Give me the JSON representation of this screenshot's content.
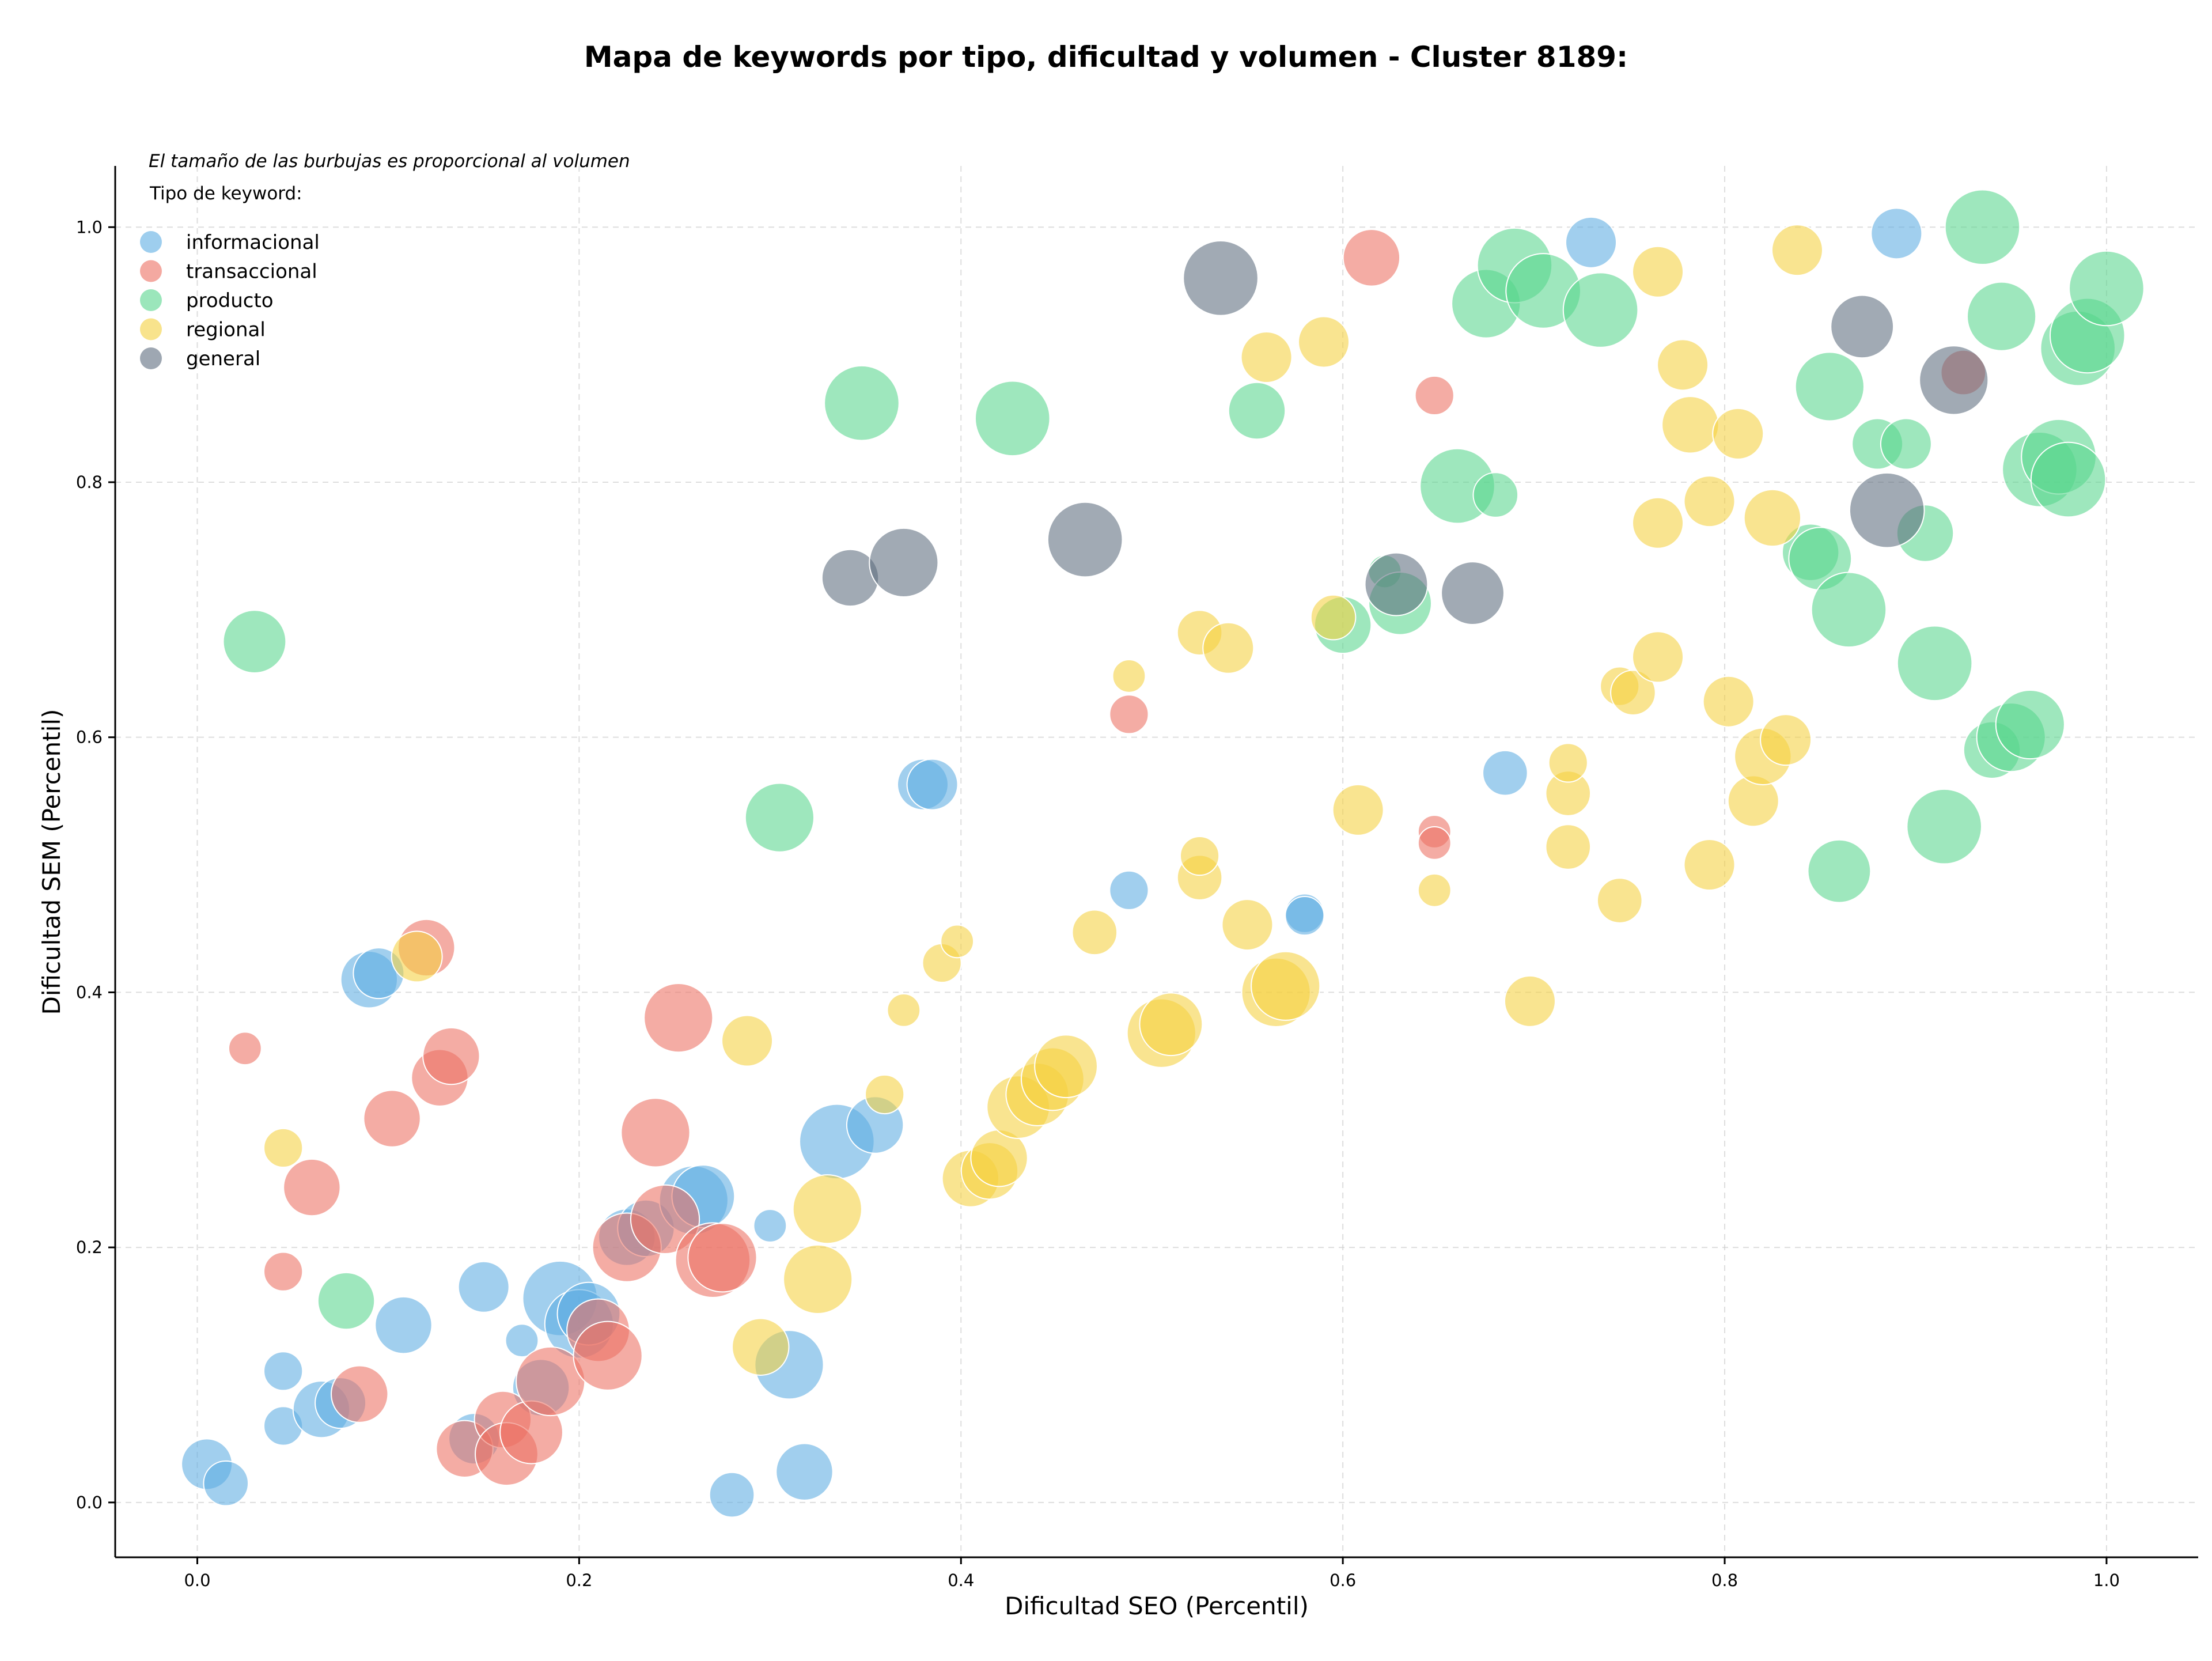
{
  "chart_data": {
    "type": "scatter",
    "title": "Mapa de keywords por tipo, dificultad y volumen - Cluster 8189:",
    "xlabel": "Dificultad SEO (Percentil)",
    "ylabel": "Dificultad SEM (Percentil)",
    "xlim": [
      -0.043,
      1.048
    ],
    "ylim": [
      -0.043,
      1.048
    ],
    "x_ticks": [
      "0.0",
      "0.2",
      "0.4",
      "0.6",
      "0.8",
      "1.0"
    ],
    "y_ticks": [
      "0.0",
      "0.2",
      "0.4",
      "0.6",
      "0.8",
      "1.0"
    ],
    "grid": true,
    "annotation": "El tamaño de las burbujas es proporcional al volumen",
    "legend": {
      "title": "Tipo de keyword:",
      "placement": "top-left"
    },
    "series": [
      {
        "name": "informacional",
        "color": "#5dade2",
        "points": [
          [
            0.005,
            0.03,
            0.5
          ],
          [
            0.015,
            0.015,
            0.4
          ],
          [
            0.045,
            0.103,
            0.3
          ],
          [
            0.045,
            0.06,
            0.3
          ],
          [
            0.065,
            0.073,
            0.6
          ],
          [
            0.075,
            0.078,
            0.5
          ],
          [
            0.09,
            0.41,
            0.6
          ],
          [
            0.095,
            0.415,
            0.5
          ],
          [
            0.108,
            0.139,
            0.6
          ],
          [
            0.15,
            0.169,
            0.5
          ],
          [
            0.17,
            0.127,
            0.2
          ],
          [
            0.145,
            0.05,
            0.5
          ],
          [
            0.18,
            0.09,
            0.6
          ],
          [
            0.19,
            0.16,
            0.9
          ],
          [
            0.2,
            0.14,
            0.8
          ],
          [
            0.205,
            0.148,
            0.7
          ],
          [
            0.225,
            0.208,
            0.6
          ],
          [
            0.235,
            0.215,
            0.6
          ],
          [
            0.26,
            0.237,
            0.8
          ],
          [
            0.265,
            0.24,
            0.7
          ],
          [
            0.28,
            0.006,
            0.4
          ],
          [
            0.3,
            0.217,
            0.2
          ],
          [
            0.31,
            0.108,
            0.8
          ],
          [
            0.318,
            0.024,
            0.6
          ],
          [
            0.335,
            0.283,
            0.9
          ],
          [
            0.355,
            0.296,
            0.6
          ],
          [
            0.38,
            0.563,
            0.5
          ],
          [
            0.385,
            0.563,
            0.5
          ],
          [
            0.488,
            0.48,
            0.3
          ],
          [
            0.58,
            0.462,
            0.3
          ],
          [
            0.58,
            0.46,
            0.3
          ],
          [
            0.685,
            0.572,
            0.4
          ],
          [
            0.73,
            0.988,
            0.5
          ],
          [
            0.89,
            0.995,
            0.5
          ]
        ]
      },
      {
        "name": "transaccional",
        "color": "#ec7063",
        "points": [
          [
            0.025,
            0.356,
            0.2
          ],
          [
            0.045,
            0.181,
            0.3
          ],
          [
            0.06,
            0.247,
            0.6
          ],
          [
            0.085,
            0.085,
            0.6
          ],
          [
            0.102,
            0.301,
            0.6
          ],
          [
            0.12,
            0.435,
            0.6
          ],
          [
            0.127,
            0.333,
            0.6
          ],
          [
            0.133,
            0.35,
            0.6
          ],
          [
            0.14,
            0.042,
            0.6
          ],
          [
            0.16,
            0.065,
            0.6
          ],
          [
            0.162,
            0.038,
            0.7
          ],
          [
            0.175,
            0.055,
            0.7
          ],
          [
            0.185,
            0.095,
            0.8
          ],
          [
            0.21,
            0.135,
            0.7
          ],
          [
            0.215,
            0.115,
            0.8
          ],
          [
            0.225,
            0.2,
            0.8
          ],
          [
            0.24,
            0.29,
            0.8
          ],
          [
            0.245,
            0.222,
            0.8
          ],
          [
            0.252,
            0.38,
            0.8
          ],
          [
            0.27,
            0.19,
            0.9
          ],
          [
            0.275,
            0.192,
            0.8
          ],
          [
            0.488,
            0.618,
            0.3
          ],
          [
            0.615,
            0.976,
            0.6
          ],
          [
            0.648,
            0.868,
            0.3
          ],
          [
            0.648,
            0.526,
            0.2
          ],
          [
            0.648,
            0.517,
            0.2
          ],
          [
            0.925,
            0.886,
            0.4
          ]
        ]
      },
      {
        "name": "producto",
        "color": "#58d68d",
        "points": [
          [
            0.03,
            0.675,
            0.7
          ],
          [
            0.078,
            0.158,
            0.6
          ],
          [
            0.305,
            0.537,
            0.8
          ],
          [
            0.348,
            0.862,
            0.9
          ],
          [
            0.427,
            0.85,
            0.9
          ],
          [
            0.555,
            0.856,
            0.6
          ],
          [
            0.6,
            0.688,
            0.6
          ],
          [
            0.622,
            0.73,
            0.2
          ],
          [
            0.63,
            0.705,
            0.7
          ],
          [
            0.66,
            0.797,
            0.9
          ],
          [
            0.68,
            0.79,
            0.4
          ],
          [
            0.675,
            0.94,
            0.8
          ],
          [
            0.69,
            0.97,
            0.9
          ],
          [
            0.705,
            0.95,
            0.9
          ],
          [
            0.735,
            0.935,
            0.9
          ],
          [
            0.845,
            0.745,
            0.6
          ],
          [
            0.85,
            0.74,
            0.7
          ],
          [
            0.855,
            0.875,
            0.8
          ],
          [
            0.865,
            0.7,
            0.9
          ],
          [
            0.88,
            0.83,
            0.5
          ],
          [
            0.895,
            0.83,
            0.5
          ],
          [
            0.905,
            0.76,
            0.6
          ],
          [
            0.91,
            0.658,
            0.9
          ],
          [
            0.915,
            0.53,
            0.9
          ],
          [
            0.86,
            0.495,
            0.7
          ],
          [
            0.935,
            1.0,
            0.9
          ],
          [
            0.945,
            0.93,
            0.8
          ],
          [
            0.94,
            0.59,
            0.6
          ],
          [
            0.95,
            0.6,
            0.8
          ],
          [
            0.96,
            0.61,
            0.8
          ],
          [
            0.965,
            0.81,
            0.9
          ],
          [
            0.975,
            0.82,
            0.9
          ],
          [
            0.98,
            0.802,
            0.9
          ],
          [
            0.985,
            0.905,
            0.9
          ],
          [
            0.99,
            0.915,
            0.9
          ],
          [
            1.0,
            0.952,
            0.9
          ]
        ]
      },
      {
        "name": "regional",
        "color": "#f4d03f",
        "points": [
          [
            0.045,
            0.278,
            0.3
          ],
          [
            0.115,
            0.428,
            0.5
          ],
          [
            0.288,
            0.362,
            0.5
          ],
          [
            0.295,
            0.122,
            0.6
          ],
          [
            0.325,
            0.175,
            0.8
          ],
          [
            0.33,
            0.23,
            0.8
          ],
          [
            0.36,
            0.32,
            0.3
          ],
          [
            0.37,
            0.386,
            0.2
          ],
          [
            0.39,
            0.423,
            0.3
          ],
          [
            0.398,
            0.44,
            0.2
          ],
          [
            0.405,
            0.254,
            0.6
          ],
          [
            0.415,
            0.26,
            0.6
          ],
          [
            0.42,
            0.27,
            0.6
          ],
          [
            0.43,
            0.31,
            0.7
          ],
          [
            0.44,
            0.32,
            0.7
          ],
          [
            0.448,
            0.332,
            0.7
          ],
          [
            0.455,
            0.342,
            0.7
          ],
          [
            0.47,
            0.447,
            0.4
          ],
          [
            0.488,
            0.648,
            0.2
          ],
          [
            0.505,
            0.368,
            0.8
          ],
          [
            0.51,
            0.375,
            0.7
          ],
          [
            0.525,
            0.49,
            0.4
          ],
          [
            0.525,
            0.507,
            0.3
          ],
          [
            0.525,
            0.682,
            0.4
          ],
          [
            0.54,
            0.67,
            0.5
          ],
          [
            0.55,
            0.453,
            0.5
          ],
          [
            0.56,
            0.898,
            0.5
          ],
          [
            0.565,
            0.4,
            0.8
          ],
          [
            0.57,
            0.405,
            0.8
          ],
          [
            0.59,
            0.91,
            0.5
          ],
          [
            0.595,
            0.694,
            0.4
          ],
          [
            0.608,
            0.543,
            0.5
          ],
          [
            0.648,
            0.48,
            0.2
          ],
          [
            0.698,
            0.393,
            0.5
          ],
          [
            0.718,
            0.514,
            0.4
          ],
          [
            0.718,
            0.556,
            0.4
          ],
          [
            0.718,
            0.58,
            0.3
          ],
          [
            0.745,
            0.64,
            0.3
          ],
          [
            0.745,
            0.472,
            0.4
          ],
          [
            0.752,
            0.635,
            0.4
          ],
          [
            0.765,
            0.663,
            0.5
          ],
          [
            0.765,
            0.768,
            0.5
          ],
          [
            0.765,
            0.965,
            0.5
          ],
          [
            0.778,
            0.892,
            0.5
          ],
          [
            0.782,
            0.845,
            0.6
          ],
          [
            0.792,
            0.785,
            0.5
          ],
          [
            0.792,
            0.5,
            0.5
          ],
          [
            0.802,
            0.628,
            0.5
          ],
          [
            0.807,
            0.838,
            0.5
          ],
          [
            0.815,
            0.55,
            0.5
          ],
          [
            0.82,
            0.585,
            0.6
          ],
          [
            0.825,
            0.772,
            0.6
          ],
          [
            0.832,
            0.598,
            0.5
          ],
          [
            0.838,
            0.982,
            0.5
          ]
        ]
      },
      {
        "name": "general",
        "color": "#5d6d7e",
        "points": [
          [
            0.342,
            0.725,
            0.6
          ],
          [
            0.37,
            0.737,
            0.8
          ],
          [
            0.465,
            0.755,
            0.9
          ],
          [
            0.536,
            0.96,
            0.9
          ],
          [
            0.628,
            0.72,
            0.7
          ],
          [
            0.668,
            0.713,
            0.7
          ],
          [
            0.872,
            0.922,
            0.7
          ],
          [
            0.885,
            0.778,
            0.9
          ],
          [
            0.92,
            0.88,
            0.8
          ]
        ]
      }
    ]
  }
}
